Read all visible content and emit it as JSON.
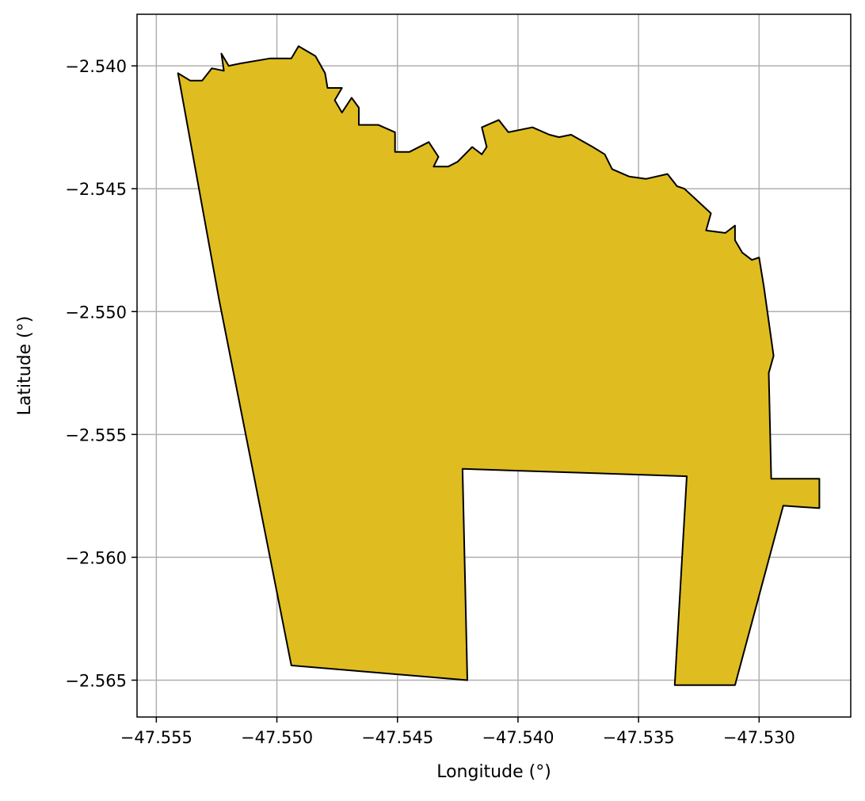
{
  "chart_data": {
    "type": "polygon-map",
    "xlabel": "Longitude (°)",
    "ylabel": "Latitude (°)",
    "xlim": [
      -47.5558,
      -47.5262
    ],
    "ylim": [
      -2.5665,
      -2.5379
    ],
    "grid": true,
    "xticks": [
      {
        "value": -47.555,
        "label": "−47.555"
      },
      {
        "value": -47.55,
        "label": "−47.550"
      },
      {
        "value": -47.545,
        "label": "−47.545"
      },
      {
        "value": -47.54,
        "label": "−47.540"
      },
      {
        "value": -47.535,
        "label": "−47.535"
      },
      {
        "value": -47.53,
        "label": "−47.530"
      }
    ],
    "yticks": [
      {
        "value": -2.54,
        "label": "−2.540"
      },
      {
        "value": -2.545,
        "label": "−2.545"
      },
      {
        "value": -2.55,
        "label": "−2.550"
      },
      {
        "value": -2.555,
        "label": "−2.555"
      },
      {
        "value": -2.56,
        "label": "−2.560"
      },
      {
        "value": -2.565,
        "label": "−2.565"
      }
    ],
    "fill_color": "#dfbd20",
    "edge_color": "#000000",
    "grid_color": "#b0b0b0",
    "polygon": [
      [
        -47.5541,
        -2.5403
      ],
      [
        -47.5536,
        -2.5406
      ],
      [
        -47.5531,
        -2.5406
      ],
      [
        -47.5527,
        -2.5401
      ],
      [
        -47.5522,
        -2.5402
      ],
      [
        -47.5523,
        -2.5395
      ],
      [
        -47.552,
        -2.54
      ],
      [
        -47.5515,
        -2.5399
      ],
      [
        -47.5503,
        -2.5397
      ],
      [
        -47.5494,
        -2.5397
      ],
      [
        -47.5491,
        -2.5392
      ],
      [
        -47.5484,
        -2.5396
      ],
      [
        -47.548,
        -2.5403
      ],
      [
        -47.5479,
        -2.5409
      ],
      [
        -47.5473,
        -2.5409
      ],
      [
        -47.5476,
        -2.5414
      ],
      [
        -47.5473,
        -2.5419
      ],
      [
        -47.5469,
        -2.5413
      ],
      [
        -47.5466,
        -2.5417
      ],
      [
        -47.5466,
        -2.5424
      ],
      [
        -47.546,
        -2.5424
      ],
      [
        -47.5458,
        -2.5424
      ],
      [
        -47.5451,
        -2.5427
      ],
      [
        -47.5451,
        -2.5435
      ],
      [
        -47.5445,
        -2.5435
      ],
      [
        -47.5437,
        -2.5431
      ],
      [
        -47.5433,
        -2.5437
      ],
      [
        -47.5435,
        -2.5441
      ],
      [
        -47.5429,
        -2.5441
      ],
      [
        -47.5425,
        -2.5439
      ],
      [
        -47.5419,
        -2.5433
      ],
      [
        -47.5415,
        -2.5436
      ],
      [
        -47.5413,
        -2.5433
      ],
      [
        -47.5415,
        -2.5425
      ],
      [
        -47.5408,
        -2.5422
      ],
      [
        -47.5404,
        -2.5427
      ],
      [
        -47.5394,
        -2.5425
      ],
      [
        -47.5387,
        -2.5428
      ],
      [
        -47.5383,
        -2.5429
      ],
      [
        -47.5378,
        -2.5428
      ],
      [
        -47.5369,
        -2.5433
      ],
      [
        -47.5364,
        -2.5436
      ],
      [
        -47.5361,
        -2.5442
      ],
      [
        -47.5354,
        -2.5445
      ],
      [
        -47.5347,
        -2.5446
      ],
      [
        -47.5338,
        -2.5444
      ],
      [
        -47.5334,
        -2.5449
      ],
      [
        -47.5331,
        -2.545
      ],
      [
        -47.532,
        -2.546
      ],
      [
        -47.5322,
        -2.5467
      ],
      [
        -47.5314,
        -2.5468
      ],
      [
        -47.531,
        -2.5465
      ],
      [
        -47.531,
        -2.5471
      ],
      [
        -47.5307,
        -2.5476
      ],
      [
        -47.5303,
        -2.5479
      ],
      [
        -47.53,
        -2.5478
      ],
      [
        -47.5298,
        -2.549
      ],
      [
        -47.5296,
        -2.5504
      ],
      [
        -47.5294,
        -2.5518
      ],
      [
        -47.5296,
        -2.5525
      ],
      [
        -47.5295,
        -2.5568
      ],
      [
        -47.528,
        -2.5568
      ],
      [
        -47.5275,
        -2.5568
      ],
      [
        -47.5275,
        -2.558
      ],
      [
        -47.529,
        -2.5579
      ],
      [
        -47.531,
        -2.5652
      ],
      [
        -47.5335,
        -2.5652
      ],
      [
        -47.533,
        -2.5567
      ],
      [
        -47.5423,
        -2.5564
      ],
      [
        -47.5421,
        -2.565
      ],
      [
        -47.5494,
        -2.5644
      ],
      [
        -47.5524,
        -2.5495
      ],
      [
        -47.5541,
        -2.5403
      ]
    ]
  }
}
